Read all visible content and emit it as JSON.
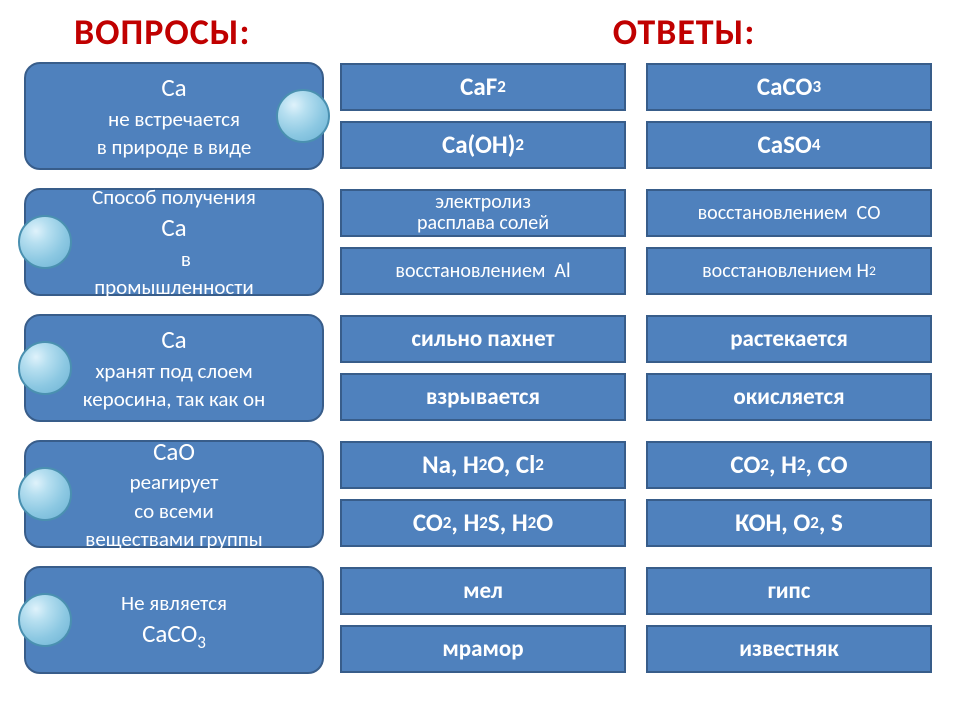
{
  "colors": {
    "title": "#c00000",
    "box_fill": "#4f81bd",
    "box_border": "#385d8a",
    "text": "#ffffff",
    "circle_border": "#4a90b0"
  },
  "titles": {
    "questions": "ВОПРОСЫ:",
    "answers": "ОТВЕТЫ:"
  },
  "rows": [
    {
      "question_html": "<span class='bigsym'>Са</span> не встречается<br>в&nbsp;природе в виде",
      "circle_side": "right",
      "answers": [
        [
          "CaF<sub>2</sub>",
          "CaCO<sub>3</sub>"
        ],
        [
          "Ca(OH)<sub>2</sub>",
          "CaSO<sub>4</sub>"
        ]
      ],
      "answer_class": "chem"
    },
    {
      "question_html": "Способ получения<br><span class='bigsym'>Са</span>&nbsp;&nbsp;&nbsp;&nbsp;&nbsp;в<br>промышленности",
      "circle_side": "left",
      "answers": [
        [
          "электролиз<br>расплава солей",
          "восстановлением&nbsp; СО"
        ],
        [
          "восстановлением&nbsp; Al",
          "восстановлением H<sub>2</sub>"
        ]
      ],
      "answer_class": "small"
    },
    {
      "question_html": "<span class='bigsym'>Са</span> хранят под слоем<br>керосина, так как он",
      "circle_side": "left",
      "answers": [
        [
          "сильно пахнет",
          "растекается"
        ],
        [
          "взрывается",
          "окисляется"
        ]
      ],
      "answer_class": ""
    },
    {
      "question_html": "<span class='bigsym'>СаО</span> реагирует<br>со всеми<br>веществами группы",
      "circle_side": "left",
      "answers": [
        [
          "Na, H<sub>2</sub>O, Cl<sub>2</sub>",
          "CO<sub>2</sub>, H<sub>2</sub>, CO"
        ],
        [
          "CO<sub>2</sub>, H<sub>2</sub>S, H<sub>2</sub>O",
          "КОН, O<sub>2</sub>, S"
        ]
      ],
      "answer_class": "chem"
    },
    {
      "question_html": "Не является<br><span class='bigsym'>СаСО<sub>3</sub></span>",
      "circle_side": "left",
      "answers": [
        [
          "мел",
          "гипс"
        ],
        [
          "мрамор",
          "известняк"
        ]
      ],
      "answer_class": ""
    }
  ]
}
